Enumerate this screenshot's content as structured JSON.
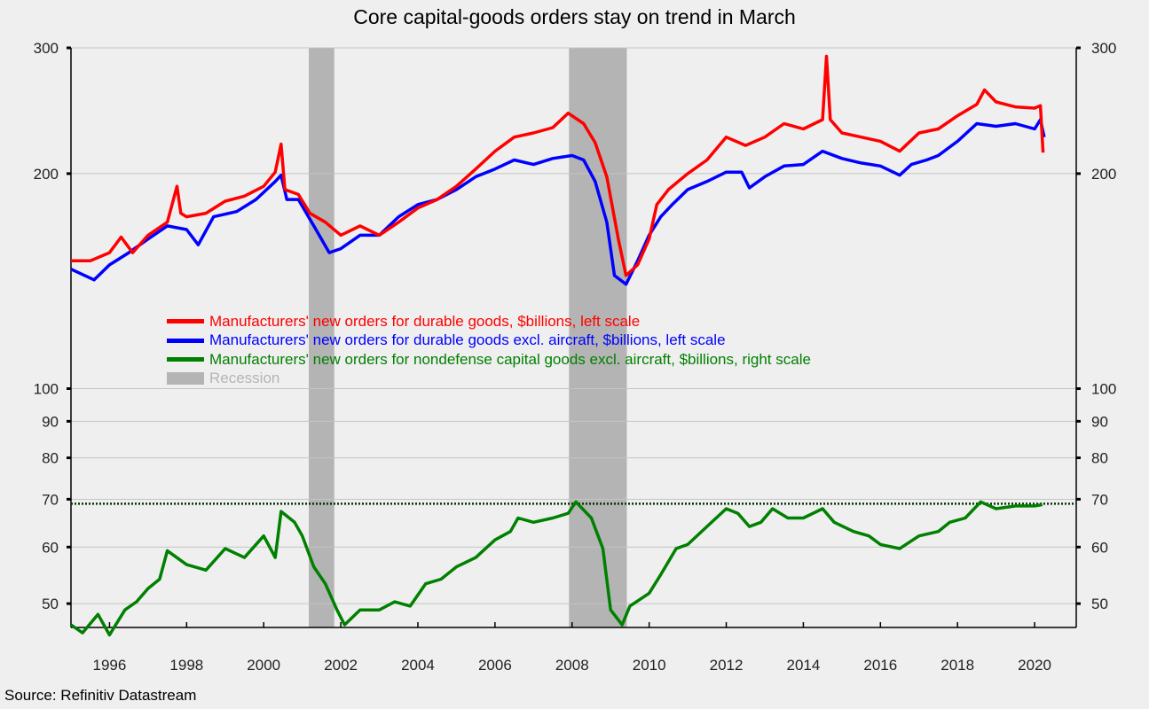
{
  "chart_data": {
    "type": "line",
    "title": "Core capital-goods orders stay on trend in March",
    "source": "Source: Refinitiv Datastream",
    "y_scale": "log",
    "ylim": [
      46.3,
      300
    ],
    "xlim": [
      1995.0,
      2021.08
    ],
    "left_ticks": [
      300,
      200,
      100,
      90,
      80,
      70,
      60,
      50
    ],
    "right_ticks": [
      300,
      200,
      100,
      90,
      80,
      70,
      60,
      50
    ],
    "x_ticks": [
      1996,
      1998,
      2000,
      2002,
      2004,
      2006,
      2008,
      2010,
      2012,
      2014,
      2016,
      2018,
      2020
    ],
    "grid": true,
    "reference_line": {
      "value": 69,
      "style": "dotted",
      "color": "#003300"
    },
    "recessions": [
      [
        2001.17,
        2001.83
      ],
      [
        2007.92,
        2009.42
      ]
    ],
    "legend": {
      "placement": "center-left",
      "items": [
        {
          "label": "Manufacturers' new orders for durable goods, $billions, left scale",
          "color": "#ff0000"
        },
        {
          "label": "Manufacturers' new orders for durable goods excl. aircraft, $billions, left scale",
          "color": "#0000ff"
        },
        {
          "label": "Manufacturers' new orders for nondefense capital goods excl. aircraft, $billions, right scale",
          "color": "#008000"
        },
        {
          "label": "Recession",
          "color": "#b4b4b4"
        }
      ]
    },
    "series": [
      {
        "name": "Durable goods",
        "color": "#ff0000",
        "x": [
          1995.0,
          1995.5,
          1996.0,
          1996.3,
          1996.6,
          1997.0,
          1997.5,
          1997.75,
          1997.85,
          1998.0,
          1998.5,
          1999.0,
          1999.5,
          2000.0,
          2000.3,
          2000.45,
          2000.55,
          2000.9,
          2001.2,
          2001.6,
          2002.0,
          2002.5,
          2003.0,
          2003.5,
          2004.0,
          2004.5,
          2005.0,
          2005.5,
          2006.0,
          2006.5,
          2007.0,
          2007.5,
          2007.9,
          2008.3,
          2008.6,
          2008.9,
          2009.2,
          2009.4,
          2009.7,
          2010.0,
          2010.2,
          2010.5,
          2011.0,
          2011.5,
          2012.0,
          2012.5,
          2013.0,
          2013.5,
          2014.0,
          2014.5,
          2014.6,
          2014.7,
          2015.0,
          2015.5,
          2016.0,
          2016.5,
          2017.0,
          2017.5,
          2018.0,
          2018.5,
          2018.7,
          2019.0,
          2019.5,
          2020.0,
          2020.15,
          2020.22
        ],
        "values": [
          151,
          151,
          155,
          163,
          155,
          164,
          171,
          192,
          176,
          174,
          176,
          183,
          186,
          192,
          201,
          220,
          190,
          187,
          176,
          171,
          164,
          169,
          164,
          171,
          179,
          184,
          192,
          203,
          215,
          225,
          228,
          232,
          243,
          235,
          221,
          198,
          162,
          144,
          149,
          162,
          181,
          190,
          200,
          209,
          225,
          219,
          225,
          235,
          231,
          238,
          292,
          238,
          228,
          225,
          222,
          215,
          228,
          231,
          241,
          250,
          262,
          252,
          248,
          247,
          249,
          214
        ]
      },
      {
        "name": "Durable goods excl. aircraft",
        "color": "#0000ff",
        "x": [
          1995.0,
          1995.6,
          1996.0,
          1996.5,
          1997.0,
          1997.5,
          1998.0,
          1998.3,
          1998.7,
          1999.3,
          1999.8,
          2000.3,
          2000.45,
          2000.6,
          2000.9,
          2001.3,
          2001.7,
          2002.0,
          2002.5,
          2003.0,
          2003.5,
          2004.0,
          2004.5,
          2005.0,
          2005.5,
          2006.0,
          2006.5,
          2007.0,
          2007.5,
          2008.0,
          2008.3,
          2008.6,
          2008.9,
          2009.1,
          2009.4,
          2009.7,
          2010.0,
          2010.3,
          2010.6,
          2011.0,
          2011.5,
          2012.0,
          2012.4,
          2012.6,
          2013.0,
          2013.5,
          2014.0,
          2014.5,
          2015.0,
          2015.5,
          2016.0,
          2016.5,
          2016.8,
          2017.2,
          2017.5,
          2018.0,
          2018.5,
          2019.0,
          2019.5,
          2020.0,
          2020.15,
          2020.25
        ],
        "values": [
          147,
          142,
          149,
          155,
          162,
          169,
          167,
          159,
          174,
          177,
          184,
          195,
          199,
          184,
          184,
          169,
          155,
          157,
          164,
          164,
          174,
          181,
          184,
          190,
          198,
          203,
          209,
          206,
          210,
          212,
          209,
          195,
          171,
          144,
          140,
          151,
          164,
          174,
          181,
          190,
          195,
          201,
          201,
          191,
          198,
          205,
          206,
          215,
          210,
          207,
          205,
          199,
          206,
          209,
          212,
          222,
          235,
          233,
          235,
          231,
          238,
          225
        ]
      },
      {
        "name": "Nondefense capital goods excl. aircraft",
        "color": "#008000",
        "x": [
          1995.0,
          1995.3,
          1995.7,
          1996.0,
          1996.4,
          1996.7,
          1997.0,
          1997.3,
          1997.5,
          1998.0,
          1998.5,
          1999.0,
          1999.5,
          2000.0,
          2000.3,
          2000.45,
          2000.8,
          2001.0,
          2001.3,
          2001.6,
          2001.9,
          2002.1,
          2002.5,
          2003.0,
          2003.4,
          2003.8,
          2004.2,
          2004.6,
          2005.0,
          2005.5,
          2006.0,
          2006.4,
          2006.6,
          2007.0,
          2007.5,
          2007.9,
          2008.1,
          2008.5,
          2008.8,
          2009.0,
          2009.3,
          2009.5,
          2010.0,
          2010.3,
          2010.7,
          2011.0,
          2011.5,
          2012.0,
          2012.3,
          2012.6,
          2012.9,
          2013.2,
          2013.6,
          2014.0,
          2014.5,
          2014.8,
          2015.3,
          2015.7,
          2016.0,
          2016.5,
          2017.0,
          2017.5,
          2017.8,
          2018.2,
          2018.6,
          2019.0,
          2019.5,
          2020.0,
          2020.2
        ],
        "values": [
          46.7,
          45.5,
          48.3,
          45.2,
          49.0,
          50.3,
          52.5,
          54.1,
          59.3,
          56.7,
          55.7,
          59.7,
          58.0,
          62.2,
          58.0,
          67.3,
          65.0,
          62.2,
          56.3,
          53.3,
          49.0,
          46.7,
          49.0,
          49.0,
          50.3,
          49.6,
          53.3,
          54.1,
          56.3,
          58.0,
          61.4,
          63.1,
          65.9,
          65.0,
          65.9,
          66.9,
          69.4,
          65.9,
          59.7,
          49.0,
          46.7,
          49.6,
          51.7,
          54.9,
          59.7,
          60.5,
          64.1,
          67.9,
          66.9,
          64.1,
          65.0,
          67.9,
          65.9,
          65.9,
          67.9,
          65.0,
          63.1,
          62.2,
          60.5,
          59.7,
          62.2,
          63.1,
          65.0,
          65.9,
          69.4,
          67.9,
          68.5,
          68.5,
          68.8
        ]
      }
    ]
  }
}
